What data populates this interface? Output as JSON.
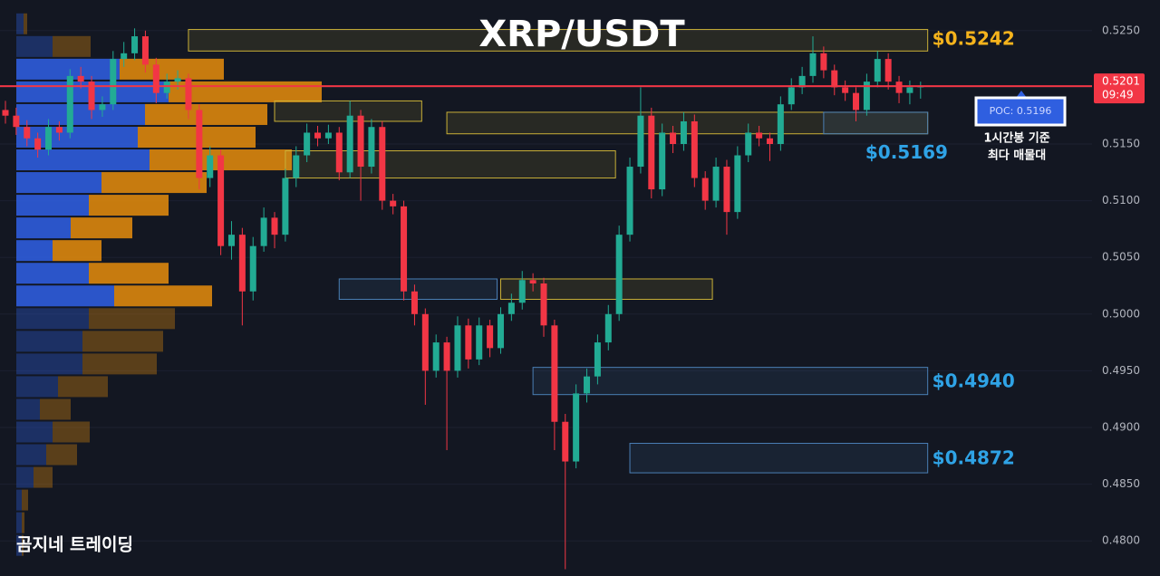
{
  "chart_data": {
    "type": "candlestick",
    "title": "XRP/USDT",
    "ylim": [
      0.4769,
      0.5277
    ],
    "yticks": [
      {
        "value": 0.48,
        "label": "0.4800"
      },
      {
        "value": 0.485,
        "label": "0.4850"
      },
      {
        "value": 0.49,
        "label": "0.4900"
      },
      {
        "value": 0.495,
        "label": "0.4950"
      },
      {
        "value": 0.5,
        "label": "0.5000"
      },
      {
        "value": 0.505,
        "label": "0.5050"
      },
      {
        "value": 0.51,
        "label": "0.5100"
      },
      {
        "value": 0.515,
        "label": "0.5150"
      },
      {
        "value": 0.52,
        "label": "0.5200"
      },
      {
        "value": 0.525,
        "label": "0.5250"
      }
    ],
    "grid": true,
    "up_color": "#22ab94",
    "down_color": "#f23645",
    "ohlc": [
      [
        0.518,
        0.5188,
        0.5168,
        0.5175
      ],
      [
        0.5175,
        0.5182,
        0.5158,
        0.5165
      ],
      [
        0.5165,
        0.5171,
        0.5148,
        0.5155
      ],
      [
        0.5155,
        0.516,
        0.5138,
        0.5145
      ],
      [
        0.5145,
        0.5172,
        0.514,
        0.5165
      ],
      [
        0.5165,
        0.517,
        0.5153,
        0.516
      ],
      [
        0.516,
        0.5216,
        0.5155,
        0.521
      ],
      [
        0.521,
        0.5218,
        0.5199,
        0.5205
      ],
      [
        0.5205,
        0.521,
        0.5172,
        0.518
      ],
      [
        0.518,
        0.5192,
        0.5174,
        0.5185
      ],
      [
        0.5185,
        0.5232,
        0.518,
        0.5225
      ],
      [
        0.5225,
        0.524,
        0.5218,
        0.523
      ],
      [
        0.523,
        0.5252,
        0.5224,
        0.5245
      ],
      [
        0.5245,
        0.525,
        0.5213,
        0.522
      ],
      [
        0.522,
        0.5226,
        0.5186,
        0.5195
      ],
      [
        0.5195,
        0.5212,
        0.519,
        0.5205
      ],
      [
        0.5205,
        0.5215,
        0.5198,
        0.5208
      ],
      [
        0.5208,
        0.5212,
        0.5172,
        0.518
      ],
      [
        0.518,
        0.5185,
        0.511,
        0.512
      ],
      [
        0.512,
        0.5148,
        0.5112,
        0.514
      ],
      [
        0.514,
        0.5145,
        0.5052,
        0.506
      ],
      [
        0.506,
        0.5082,
        0.5048,
        0.507
      ],
      [
        0.507,
        0.5076,
        0.499,
        0.502
      ],
      [
        0.502,
        0.5068,
        0.5012,
        0.506
      ],
      [
        0.506,
        0.5094,
        0.5055,
        0.5085
      ],
      [
        0.5085,
        0.509,
        0.5058,
        0.507
      ],
      [
        0.507,
        0.5128,
        0.5064,
        0.512
      ],
      [
        0.512,
        0.5148,
        0.5112,
        0.514
      ],
      [
        0.514,
        0.5168,
        0.5134,
        0.516
      ],
      [
        0.516,
        0.5166,
        0.5148,
        0.5155
      ],
      [
        0.5155,
        0.5167,
        0.515,
        0.516
      ],
      [
        0.516,
        0.5165,
        0.5118,
        0.5125
      ],
      [
        0.5125,
        0.5188,
        0.512,
        0.5175
      ],
      [
        0.5175,
        0.518,
        0.51,
        0.513
      ],
      [
        0.513,
        0.5172,
        0.5124,
        0.5165
      ],
      [
        0.5165,
        0.517,
        0.5092,
        0.51
      ],
      [
        0.51,
        0.5106,
        0.5088,
        0.5095
      ],
      [
        0.5095,
        0.51,
        0.5012,
        0.502
      ],
      [
        0.502,
        0.5026,
        0.499,
        0.5
      ],
      [
        0.5,
        0.5005,
        0.492,
        0.495
      ],
      [
        0.495,
        0.4982,
        0.4944,
        0.4975
      ],
      [
        0.4975,
        0.498,
        0.488,
        0.495
      ],
      [
        0.495,
        0.4998,
        0.4944,
        0.499
      ],
      [
        0.499,
        0.4996,
        0.4952,
        0.496
      ],
      [
        0.496,
        0.4997,
        0.4955,
        0.499
      ],
      [
        0.499,
        0.4995,
        0.4962,
        0.497
      ],
      [
        0.497,
        0.5006,
        0.4965,
        0.5
      ],
      [
        0.5,
        0.5018,
        0.4994,
        0.501
      ],
      [
        0.501,
        0.5038,
        0.5004,
        0.503
      ],
      [
        0.503,
        0.5036,
        0.502,
        0.5027
      ],
      [
        0.5027,
        0.5032,
        0.498,
        0.499
      ],
      [
        0.499,
        0.4995,
        0.488,
        0.4905
      ],
      [
        0.4905,
        0.4912,
        0.4775,
        0.487
      ],
      [
        0.487,
        0.4938,
        0.4864,
        0.493
      ],
      [
        0.493,
        0.4952,
        0.4922,
        0.4945
      ],
      [
        0.4945,
        0.4982,
        0.4938,
        0.4975
      ],
      [
        0.4975,
        0.5008,
        0.4968,
        0.5
      ],
      [
        0.5,
        0.5078,
        0.4994,
        0.507
      ],
      [
        0.507,
        0.5138,
        0.5064,
        0.513
      ],
      [
        0.513,
        0.52,
        0.5124,
        0.5175
      ],
      [
        0.5175,
        0.5182,
        0.5102,
        0.511
      ],
      [
        0.511,
        0.5168,
        0.5104,
        0.516
      ],
      [
        0.516,
        0.5166,
        0.5142,
        0.515
      ],
      [
        0.515,
        0.5178,
        0.5144,
        0.517
      ],
      [
        0.517,
        0.5176,
        0.5112,
        0.512
      ],
      [
        0.512,
        0.5126,
        0.5092,
        0.51
      ],
      [
        0.51,
        0.5138,
        0.5094,
        0.513
      ],
      [
        0.513,
        0.5136,
        0.507,
        0.509
      ],
      [
        0.509,
        0.5148,
        0.5084,
        0.514
      ],
      [
        0.514,
        0.5168,
        0.5134,
        0.516
      ],
      [
        0.516,
        0.5166,
        0.5148,
        0.5155
      ],
      [
        0.5155,
        0.516,
        0.5135,
        0.515
      ],
      [
        0.515,
        0.5192,
        0.5144,
        0.5185
      ],
      [
        0.5185,
        0.5208,
        0.518,
        0.52
      ],
      [
        0.52,
        0.5218,
        0.5194,
        0.521
      ],
      [
        0.521,
        0.5245,
        0.5204,
        0.523
      ],
      [
        0.523,
        0.5236,
        0.5208,
        0.5215
      ],
      [
        0.5215,
        0.522,
        0.5193,
        0.52
      ],
      [
        0.52,
        0.5206,
        0.5188,
        0.5195
      ],
      [
        0.5195,
        0.52,
        0.517,
        0.518
      ],
      [
        0.518,
        0.5212,
        0.5175,
        0.5205
      ],
      [
        0.5205,
        0.5232,
        0.52,
        0.5225
      ],
      [
        0.5225,
        0.523,
        0.5198,
        0.5205
      ],
      [
        0.5205,
        0.521,
        0.5186,
        0.5195
      ],
      [
        0.5195,
        0.5206,
        0.5185,
        0.52
      ],
      [
        0.52,
        0.5205,
        0.519,
        0.5201
      ]
    ],
    "current_price": 0.5201,
    "current_price_color": "#f23645",
    "countdown": "09:49",
    "zones": [
      {
        "low": 0.5232,
        "high": 0.5251,
        "start": 17,
        "end": 86,
        "color": "#c9b037",
        "level": 0.5242,
        "label": "$0.5242",
        "label_color": "#f5b31c",
        "label_position": "right"
      },
      {
        "low": 0.517,
        "high": 0.5188,
        "start": 25,
        "end": 39,
        "color": "#c9b037"
      },
      {
        "low": 0.5159,
        "high": 0.5178,
        "start": 41,
        "end": 86,
        "color": "#c9b037"
      },
      {
        "low": 0.5159,
        "high": 0.5178,
        "start": 76,
        "end": 86,
        "color": "#4a7fb5",
        "level": 0.5169,
        "label": "$0.5169",
        "label_color": "#2fa3e6",
        "label_position": "below"
      },
      {
        "low": 0.512,
        "high": 0.5144,
        "start": 26,
        "end": 57,
        "color": "#c9b037"
      },
      {
        "low": 0.5013,
        "high": 0.5031,
        "start": 31,
        "end": 46,
        "color": "#4a7fb5"
      },
      {
        "low": 0.5013,
        "high": 0.5031,
        "start": 46,
        "end": 66,
        "color": "#c9b037"
      },
      {
        "low": 0.4929,
        "high": 0.4953,
        "start": 49,
        "end": 86,
        "color": "#4a7fb5",
        "level": 0.494,
        "label": "$0.4940",
        "label_color": "#2fa3e6",
        "label_position": "right"
      },
      {
        "low": 0.486,
        "high": 0.4886,
        "start": 58,
        "end": 86,
        "color": "#4a7fb5",
        "level": 0.4872,
        "label": "$0.4872",
        "label_color": "#2fa3e6",
        "label_position": "right"
      }
    ],
    "volume_profile": {
      "bins": [
        0.4786,
        0.4806,
        0.4826,
        0.4846,
        0.4866,
        0.4886,
        0.4906,
        0.4926,
        0.4946,
        0.4966,
        0.4986,
        0.5006,
        0.5026,
        0.5046,
        0.5066,
        0.5086,
        0.5106,
        0.5126,
        0.5146,
        0.5166,
        0.5186,
        0.5206,
        0.5226,
        0.5246,
        0.5266
      ],
      "buy": [
        6,
        6,
        6,
        19,
        33,
        40,
        26,
        46,
        73,
        73,
        80,
        108,
        80,
        40,
        60,
        80,
        94,
        147,
        134,
        142,
        168,
        114,
        40,
        8
      ],
      "sell": [
        2,
        3,
        7,
        21,
        34,
        41,
        34,
        55,
        82,
        89,
        95,
        108,
        88,
        54,
        68,
        88,
        116,
        157,
        130,
        135,
        169,
        115,
        42,
        4
      ],
      "buy_color": "#2f5fe0",
      "sell_color": "#e08a0c",
      "value_area": [
        0.5006,
        0.5226
      ],
      "xlim": [
        0,
        1000
      ]
    },
    "poc_label": "POC: 0.5196",
    "note": [
      "1시간봉 기준",
      "최다 매물대"
    ],
    "watermark": "곰지네 트레이딩"
  }
}
